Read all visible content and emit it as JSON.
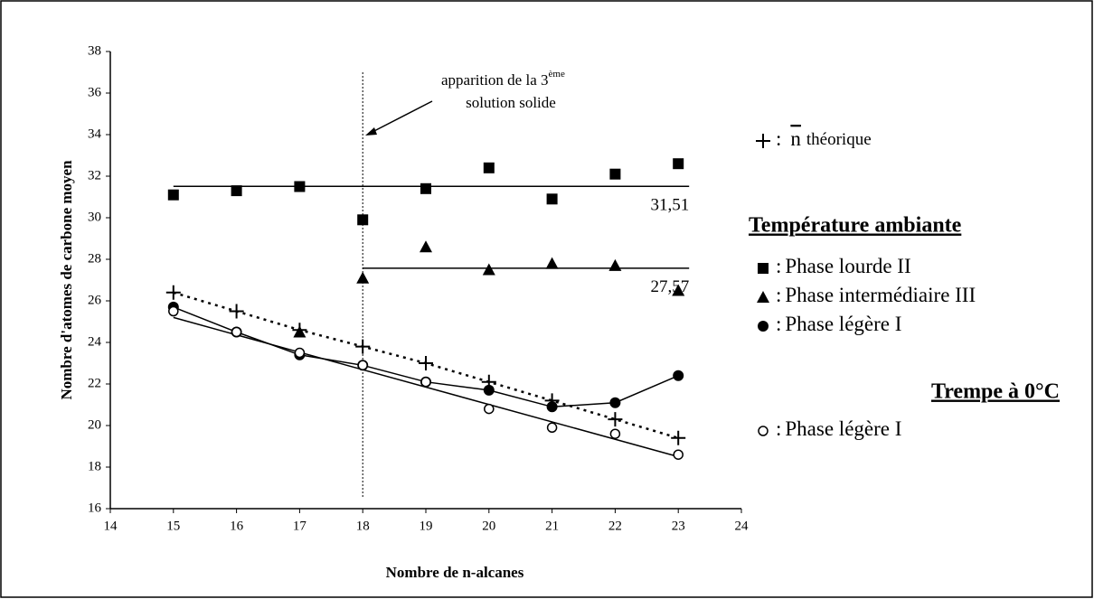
{
  "chart_data": {
    "type": "scatter",
    "xlabel": "Nombre de n-alcanes",
    "ylabel": "Nombre d'atomes de carbone moyen",
    "xlim": [
      14,
      24
    ],
    "xticks": [
      14,
      15,
      16,
      17,
      18,
      19,
      20,
      21,
      22,
      23,
      24
    ],
    "ylim": [
      16,
      38
    ],
    "yticks": [
      16,
      18,
      20,
      22,
      24,
      26,
      28,
      30,
      32,
      34,
      36,
      38
    ],
    "legend_titles": [
      "Température ambiante",
      "Trempe à 0°C"
    ],
    "legend_sep": ":",
    "series": [
      {
        "name": "Phase lourde II",
        "marker": "square",
        "color": "#000000",
        "connect": false,
        "x": [
          15,
          16,
          17,
          18,
          19,
          20,
          21,
          22,
          23
        ],
        "values": [
          31.1,
          31.3,
          31.5,
          29.9,
          31.4,
          32.4,
          30.9,
          32.1,
          32.6
        ]
      },
      {
        "name": "Phase intermédiaire III",
        "marker": "triangle",
        "color": "#000000",
        "connect": false,
        "x": [
          17,
          18,
          19,
          20,
          21,
          22,
          23
        ],
        "values": [
          24.5,
          27.1,
          28.6,
          27.5,
          27.8,
          27.7,
          26.5
        ]
      },
      {
        "name": "Phase légère I",
        "marker": "circle",
        "color": "#000000",
        "connect": true,
        "x": [
          15,
          16,
          17,
          18,
          19,
          20,
          21,
          22,
          23
        ],
        "values": [
          25.7,
          24.5,
          23.4,
          22.9,
          22.1,
          21.7,
          20.9,
          21.1,
          22.4
        ]
      },
      {
        "name": "Phase légère I",
        "marker": "open-circle",
        "color": "#000000",
        "connect": false,
        "x": [
          15,
          16,
          17,
          18,
          19,
          20,
          21,
          22,
          23
        ],
        "values": [
          25.5,
          24.5,
          23.5,
          22.9,
          22.1,
          20.8,
          19.9,
          19.6,
          18.6
        ]
      },
      {
        "name": "théorique",
        "symbol": "n",
        "marker": "plus",
        "color": "#000000",
        "connect": "dotted",
        "x": [
          15,
          16,
          17,
          18,
          19,
          20,
          21,
          22,
          23
        ],
        "values": [
          26.4,
          25.5,
          24.6,
          23.8,
          23.0,
          22.1,
          21.2,
          20.3,
          19.4
        ]
      }
    ],
    "fit": {
      "x": [
        15,
        23
      ],
      "values": [
        25.2,
        18.5
      ]
    },
    "ref_lines": [
      {
        "value": 31.51,
        "label": "31,51",
        "x": [
          15,
          23
        ]
      },
      {
        "value": 27.57,
        "label": "27,57",
        "x": [
          18,
          23
        ]
      }
    ],
    "annotation": {
      "x": 18,
      "y": [
        37,
        16.5
      ],
      "text": "apparition de la 3",
      "sup": "ème",
      "line2": "solution solide"
    }
  }
}
